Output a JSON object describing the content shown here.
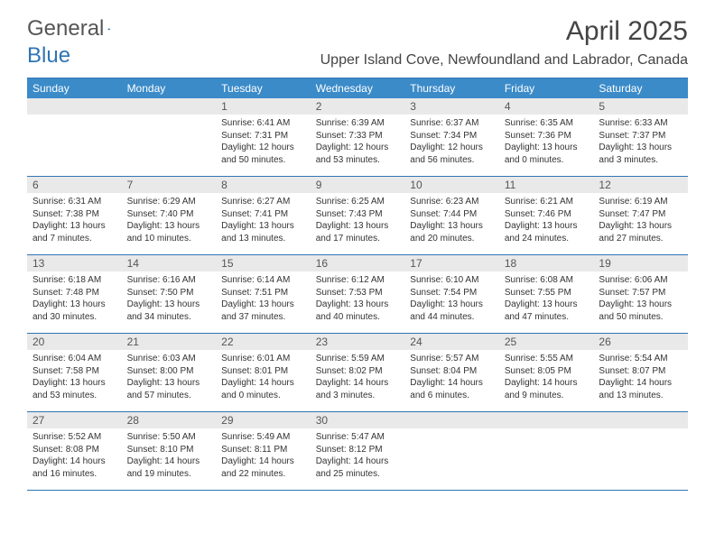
{
  "logo": {
    "text_gray": "General",
    "text_blue": "Blue"
  },
  "title": "April 2025",
  "location": "Upper Island Cove, Newfoundland and Labrador, Canada",
  "colors": {
    "header_bar": "#3b8bc9",
    "border": "#2f74b5",
    "daynum_bg": "#e9e9e9",
    "text_dark": "#333333",
    "text_gray": "#555555"
  },
  "weekdays": [
    "Sunday",
    "Monday",
    "Tuesday",
    "Wednesday",
    "Thursday",
    "Friday",
    "Saturday"
  ],
  "weeks": [
    [
      null,
      null,
      {
        "n": "1",
        "sr": "6:41 AM",
        "ss": "7:31 PM",
        "dl": "12 hours and 50 minutes."
      },
      {
        "n": "2",
        "sr": "6:39 AM",
        "ss": "7:33 PM",
        "dl": "12 hours and 53 minutes."
      },
      {
        "n": "3",
        "sr": "6:37 AM",
        "ss": "7:34 PM",
        "dl": "12 hours and 56 minutes."
      },
      {
        "n": "4",
        "sr": "6:35 AM",
        "ss": "7:36 PM",
        "dl": "13 hours and 0 minutes."
      },
      {
        "n": "5",
        "sr": "6:33 AM",
        "ss": "7:37 PM",
        "dl": "13 hours and 3 minutes."
      }
    ],
    [
      {
        "n": "6",
        "sr": "6:31 AM",
        "ss": "7:38 PM",
        "dl": "13 hours and 7 minutes."
      },
      {
        "n": "7",
        "sr": "6:29 AM",
        "ss": "7:40 PM",
        "dl": "13 hours and 10 minutes."
      },
      {
        "n": "8",
        "sr": "6:27 AM",
        "ss": "7:41 PM",
        "dl": "13 hours and 13 minutes."
      },
      {
        "n": "9",
        "sr": "6:25 AM",
        "ss": "7:43 PM",
        "dl": "13 hours and 17 minutes."
      },
      {
        "n": "10",
        "sr": "6:23 AM",
        "ss": "7:44 PM",
        "dl": "13 hours and 20 minutes."
      },
      {
        "n": "11",
        "sr": "6:21 AM",
        "ss": "7:46 PM",
        "dl": "13 hours and 24 minutes."
      },
      {
        "n": "12",
        "sr": "6:19 AM",
        "ss": "7:47 PM",
        "dl": "13 hours and 27 minutes."
      }
    ],
    [
      {
        "n": "13",
        "sr": "6:18 AM",
        "ss": "7:48 PM",
        "dl": "13 hours and 30 minutes."
      },
      {
        "n": "14",
        "sr": "6:16 AM",
        "ss": "7:50 PM",
        "dl": "13 hours and 34 minutes."
      },
      {
        "n": "15",
        "sr": "6:14 AM",
        "ss": "7:51 PM",
        "dl": "13 hours and 37 minutes."
      },
      {
        "n": "16",
        "sr": "6:12 AM",
        "ss": "7:53 PM",
        "dl": "13 hours and 40 minutes."
      },
      {
        "n": "17",
        "sr": "6:10 AM",
        "ss": "7:54 PM",
        "dl": "13 hours and 44 minutes."
      },
      {
        "n": "18",
        "sr": "6:08 AM",
        "ss": "7:55 PM",
        "dl": "13 hours and 47 minutes."
      },
      {
        "n": "19",
        "sr": "6:06 AM",
        "ss": "7:57 PM",
        "dl": "13 hours and 50 minutes."
      }
    ],
    [
      {
        "n": "20",
        "sr": "6:04 AM",
        "ss": "7:58 PM",
        "dl": "13 hours and 53 minutes."
      },
      {
        "n": "21",
        "sr": "6:03 AM",
        "ss": "8:00 PM",
        "dl": "13 hours and 57 minutes."
      },
      {
        "n": "22",
        "sr": "6:01 AM",
        "ss": "8:01 PM",
        "dl": "14 hours and 0 minutes."
      },
      {
        "n": "23",
        "sr": "5:59 AM",
        "ss": "8:02 PM",
        "dl": "14 hours and 3 minutes."
      },
      {
        "n": "24",
        "sr": "5:57 AM",
        "ss": "8:04 PM",
        "dl": "14 hours and 6 minutes."
      },
      {
        "n": "25",
        "sr": "5:55 AM",
        "ss": "8:05 PM",
        "dl": "14 hours and 9 minutes."
      },
      {
        "n": "26",
        "sr": "5:54 AM",
        "ss": "8:07 PM",
        "dl": "14 hours and 13 minutes."
      }
    ],
    [
      {
        "n": "27",
        "sr": "5:52 AM",
        "ss": "8:08 PM",
        "dl": "14 hours and 16 minutes."
      },
      {
        "n": "28",
        "sr": "5:50 AM",
        "ss": "8:10 PM",
        "dl": "14 hours and 19 minutes."
      },
      {
        "n": "29",
        "sr": "5:49 AM",
        "ss": "8:11 PM",
        "dl": "14 hours and 22 minutes."
      },
      {
        "n": "30",
        "sr": "5:47 AM",
        "ss": "8:12 PM",
        "dl": "14 hours and 25 minutes."
      },
      null,
      null,
      null
    ]
  ],
  "labels": {
    "sunrise": "Sunrise:",
    "sunset": "Sunset:",
    "daylight": "Daylight:"
  }
}
